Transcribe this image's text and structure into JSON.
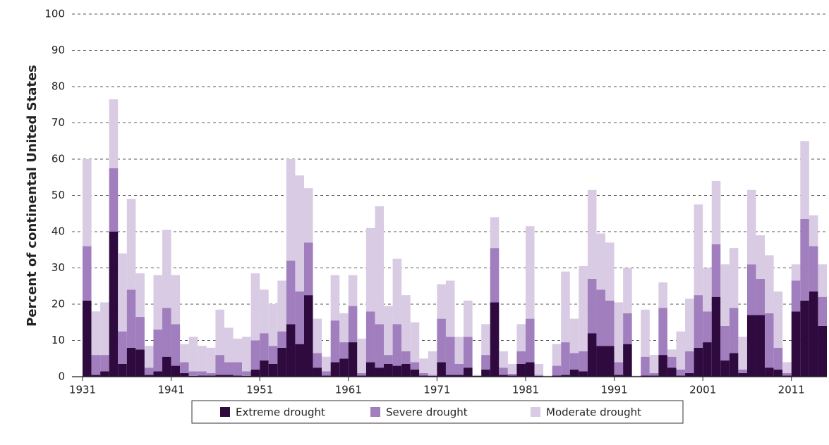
{
  "chart_data": {
    "type": "stacked_bar",
    "y_label": "Percent of continental United States",
    "x": [
      1931,
      1932,
      1933,
      1934,
      1935,
      1936,
      1937,
      1938,
      1939,
      1940,
      1941,
      1942,
      1943,
      1944,
      1945,
      1946,
      1947,
      1948,
      1949,
      1950,
      1951,
      1952,
      1953,
      1954,
      1955,
      1956,
      1957,
      1958,
      1959,
      1960,
      1961,
      1962,
      1963,
      1964,
      1965,
      1966,
      1967,
      1968,
      1969,
      1970,
      1971,
      1972,
      1973,
      1974,
      1975,
      1976,
      1977,
      1978,
      1979,
      1980,
      1981,
      1982,
      1983,
      1984,
      1985,
      1986,
      1987,
      1988,
      1989,
      1990,
      1991,
      1992,
      1993,
      1994,
      1995,
      1996,
      1997,
      1998,
      1999,
      2000,
      2001,
      2002,
      2003,
      2004,
      2005,
      2006,
      2007,
      2008,
      2009,
      2010,
      2011,
      2012,
      2013,
      2014
    ],
    "xlim": [
      1931,
      2015
    ],
    "xticks": [
      1931,
      1941,
      1951,
      1961,
      1971,
      1981,
      1991,
      2001,
      2011
    ],
    "ylim": [
      0,
      100
    ],
    "yticks": [
      0,
      10,
      20,
      30,
      40,
      50,
      60,
      70,
      80,
      90,
      100
    ],
    "grid": true,
    "legend": "bottom",
    "series": [
      {
        "name": "Extreme drought",
        "color": "#2e0a3f",
        "values": [
          21,
          0.5,
          1.5,
          40,
          3.5,
          8,
          7.5,
          0.5,
          1.5,
          5.5,
          3,
          1,
          0.2,
          0.3,
          0.3,
          0.5,
          0.5,
          0.3,
          0.2,
          2,
          4.5,
          3.5,
          8,
          14.5,
          9,
          22.5,
          2.5,
          0.3,
          4,
          5,
          9.5,
          0.3,
          4,
          2.5,
          3.5,
          3,
          3.5,
          2,
          0.3,
          0.2,
          4,
          0.5,
          0.5,
          2.5,
          0.2,
          2,
          20.5,
          0.5,
          0.3,
          3.5,
          4,
          0.2,
          0.1,
          0.3,
          0.5,
          2,
          1.5,
          12,
          8.5,
          8.5,
          0.5,
          9,
          0.1,
          0.3,
          0.3,
          6,
          2.5,
          0.3,
          1,
          8,
          9.5,
          22,
          4.5,
          6.5,
          1,
          17,
          17,
          2.5,
          2,
          0.3,
          18,
          21,
          23.5,
          14
        ]
      },
      {
        "name": "Severe drought",
        "color": "#a17ebd",
        "values": [
          15,
          5.5,
          4.5,
          17.5,
          9,
          16,
          9,
          2,
          11.5,
          13.5,
          11.5,
          3,
          1.3,
          1.2,
          0.7,
          5.5,
          3.5,
          3.7,
          1.3,
          8,
          7.5,
          5,
          4.5,
          17.5,
          14.5,
          14.5,
          4,
          1.2,
          11.5,
          4.5,
          10,
          0.7,
          14,
          12,
          2.5,
          11.5,
          3.5,
          2,
          0.7,
          0.3,
          12,
          10.5,
          3,
          8.5,
          0.1,
          4,
          15,
          2,
          0.5,
          3.5,
          12,
          0.3,
          0.1,
          2.7,
          9,
          4.5,
          5.5,
          15,
          15.5,
          12.5,
          3.5,
          8.5,
          0.1,
          5.2,
          0.7,
          13,
          3,
          1.7,
          6,
          14.5,
          8.5,
          14.5,
          9.5,
          12.5,
          1,
          14,
          10,
          15,
          6,
          0.7,
          8.5,
          22.5,
          12.5,
          8
        ]
      },
      {
        "name": "Moderate drought",
        "color": "#d8cbe3",
        "values": [
          24,
          12,
          14.5,
          19,
          21.5,
          25,
          12,
          6,
          15,
          21.5,
          13.5,
          5,
          9.5,
          7,
          7,
          12.5,
          9.5,
          6.5,
          9.5,
          18.5,
          12,
          11.5,
          14,
          28,
          32,
          15,
          9.5,
          4,
          12.5,
          8,
          8.5,
          9.5,
          23,
          32.5,
          13.5,
          18,
          15.5,
          11,
          4,
          6.5,
          9.5,
          15.5,
          7.5,
          10,
          0.2,
          8.5,
          8.5,
          4.5,
          2.7,
          7.5,
          25.5,
          3,
          0.1,
          6,
          19.5,
          9.5,
          23.5,
          24.5,
          15.5,
          16,
          16.5,
          12.5,
          0.1,
          13,
          5,
          7,
          2,
          10.5,
          14.5,
          25,
          12,
          17.5,
          17,
          16.5,
          9,
          20.5,
          12,
          16,
          15.5,
          3,
          4.5,
          21.5,
          8.5,
          9
        ]
      }
    ]
  }
}
